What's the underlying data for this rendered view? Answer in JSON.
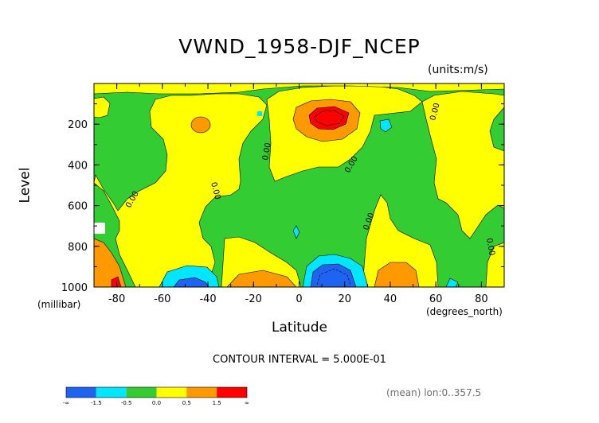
{
  "chart_data": {
    "type": "heatmap",
    "title": "VWND_1958-DJF_NCEP",
    "units": "(units:m/s)",
    "ylabel": "Level",
    "yunit": "(millibar)",
    "xlabel": "Latitude",
    "xunit": "(degrees_north)",
    "xlim": [
      -90,
      90
    ],
    "ylim": [
      1000,
      0
    ],
    "x_ticks": [
      -80,
      -60,
      -40,
      -20,
      0,
      20,
      40,
      60,
      80
    ],
    "y_ticks": [
      200,
      400,
      600,
      800,
      1000
    ],
    "contour_interval": "CONTOUR INTERVAL = 5.000E-01",
    "contour_labels": [
      "0.00",
      "0.00",
      "0.00",
      "0.00",
      "0.00",
      "0.00",
      "0.00",
      "0.00"
    ],
    "colorbar": {
      "ticks": [
        "-∞",
        "-1.5",
        "-0.5",
        "0.0",
        "0.5",
        "1.5",
        "∞"
      ],
      "bins": [
        {
          "range": "< -1.5",
          "color": "#1e64f0"
        },
        {
          "range": "-1.5 to -0.5",
          "color": "#00e6ff"
        },
        {
          "range": "-0.5 to 0.0",
          "color": "#33cc33"
        },
        {
          "range": "0.0 to 0.5",
          "color": "#ffff00"
        },
        {
          "range": "0.5 to 1.5",
          "color": "#ff9900"
        },
        {
          "range": "> 1.5",
          "color": "#ff0000"
        }
      ]
    },
    "footnote": "(mean) lon:0..357.5"
  }
}
